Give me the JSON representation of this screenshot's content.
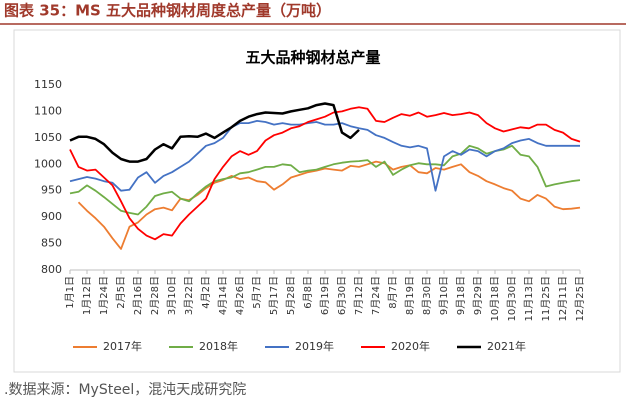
{
  "header": {
    "title": "图表 35：MS 五大品种钢材周度总产量（万吨）"
  },
  "chart_data": {
    "type": "line",
    "title": "五大品种钢材总产量",
    "categories": [
      "1月1日",
      null,
      "1月12日",
      null,
      "1月24日",
      null,
      "2月5日",
      null,
      "2月16日",
      null,
      "2月28日",
      null,
      "3月10日",
      null,
      "3月22日",
      null,
      "4月2日",
      null,
      "4月14日",
      null,
      "4月26日",
      null,
      "5月7日",
      null,
      "5月17日",
      null,
      "5月28日",
      null,
      "6月8日",
      null,
      "6月19日",
      null,
      "6月30日",
      null,
      "7月12日",
      null,
      "7月24日",
      null,
      "8月7日",
      null,
      "8月19日",
      null,
      "8月30日",
      null,
      "9月10日",
      null,
      "9月18日",
      null,
      "9月29日",
      null,
      "10月18日",
      null,
      "10月30日",
      null,
      "11月13日",
      null,
      "11月25日",
      null,
      "12月11日",
      null,
      "12月25日"
    ],
    "series": [
      {
        "name": "2017年",
        "color": "#ed7d31",
        "values": [
          null,
          928,
          912,
          898,
          882,
          860,
          840,
          882,
          890,
          905,
          915,
          918,
          913,
          935,
          932,
          942,
          955,
          965,
          970,
          978,
          972,
          975,
          968,
          966,
          952,
          962,
          975,
          980,
          985,
          988,
          992,
          990,
          988,
          997,
          995,
          1000,
          1005,
          1002,
          990,
          995,
          998,
          985,
          983,
          993,
          990,
          995,
          1000,
          985,
          978,
          968,
          962,
          955,
          950,
          935,
          930,
          942,
          935,
          920,
          915,
          916,
          918
        ]
      },
      {
        "name": "2018年",
        "color": "#70ad47",
        "values": [
          945,
          948,
          960,
          950,
          938,
          925,
          912,
          908,
          905,
          920,
          940,
          945,
          948,
          935,
          930,
          945,
          958,
          968,
          972,
          975,
          983,
          985,
          990,
          995,
          995,
          1000,
          998,
          985,
          988,
          990,
          995,
          1000,
          1003,
          1005,
          1006,
          1008,
          995,
          1005,
          980,
          990,
          998,
          1002,
          1000,
          1000,
          998,
          1015,
          1020,
          1035,
          1030,
          1020,
          1025,
          1028,
          1035,
          1018,
          1015,
          995,
          958,
          962,
          965,
          968,
          970
        ]
      },
      {
        "name": "2019年",
        "color": "#4472c4",
        "values": [
          968,
          972,
          976,
          973,
          968,
          965,
          950,
          952,
          975,
          985,
          965,
          978,
          985,
          995,
          1005,
          1020,
          1035,
          1040,
          1050,
          1070,
          1078,
          1078,
          1082,
          1080,
          1075,
          1078,
          1075,
          1075,
          1078,
          1080,
          1075,
          1075,
          1078,
          1072,
          1068,
          1065,
          1055,
          1050,
          1042,
          1035,
          1032,
          1035,
          1030,
          950,
          1015,
          1025,
          1018,
          1028,
          1025,
          1015,
          1025,
          1030,
          1040,
          1045,
          1048,
          1040,
          1035,
          1035,
          1035,
          1035,
          1035
        ]
      },
      {
        "name": "2020年",
        "color": "#ff0000",
        "values": [
          1028,
          995,
          988,
          990,
          975,
          960,
          930,
          898,
          878,
          865,
          858,
          868,
          865,
          888,
          905,
          920,
          935,
          972,
          995,
          1015,
          1025,
          1018,
          1025,
          1045,
          1055,
          1060,
          1068,
          1072,
          1080,
          1085,
          1090,
          1098,
          1100,
          1105,
          1108,
          1105,
          1082,
          1080,
          1088,
          1095,
          1092,
          1098,
          1090,
          1093,
          1097,
          1093,
          1095,
          1098,
          1093,
          1078,
          1068,
          1062,
          1066,
          1070,
          1068,
          1075,
          1075,
          1065,
          1060,
          1048,
          1043
        ]
      },
      {
        "name": "2021年",
        "color": "#000000",
        "values": [
          1045,
          1052,
          1052,
          1048,
          1038,
          1022,
          1010,
          1005,
          1005,
          1010,
          1028,
          1038,
          1030,
          1052,
          1053,
          1052,
          1058,
          1050,
          1060,
          1070,
          1082,
          1090,
          1095,
          1098,
          1097,
          1096,
          1100,
          1103,
          1106,
          1112,
          1115,
          1112,
          1060,
          1050,
          1065,
          null,
          null,
          null,
          null,
          null,
          null,
          null,
          null,
          null,
          null,
          null,
          null,
          null,
          null,
          null,
          null,
          null,
          null,
          null,
          null,
          null,
          null,
          null,
          null,
          null,
          null
        ]
      }
    ],
    "ylim": [
      800,
      1150
    ],
    "yticks": [
      800,
      850,
      900,
      950,
      1000,
      1050,
      1100,
      1150
    ],
    "grid": false
  },
  "source": ".数据来源：MySteel，混沌天成研究院"
}
